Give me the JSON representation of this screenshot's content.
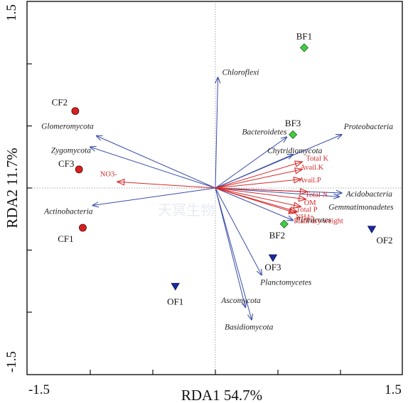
{
  "chart_data": {
    "type": "scatter",
    "subtype": "rda-biplot",
    "xlabel": "RDA1 54.7%",
    "ylabel": "RDA2 11.7%",
    "xlim": [
      -1.5,
      1.5
    ],
    "ylim": [
      -1.5,
      1.5
    ],
    "x_tick_labels": [
      "-1.5",
      "1.5"
    ],
    "y_tick_labels": [
      "1.5",
      "-1.5"
    ],
    "reference_lines": {
      "x": 0,
      "y": 0,
      "style": "dotted"
    },
    "colors": {
      "species_arrows": "#3a4fa8",
      "env_arrows": "#d62a2a",
      "CF": "#d92020",
      "BF": "#3fcf3f",
      "OF": "#1b2aa0"
    },
    "species_arrows": [
      {
        "label": "Chloroflexi",
        "x": 0.02,
        "y": 0.89
      },
      {
        "label": "Glomeromycota",
        "x": -0.95,
        "y": 0.42
      },
      {
        "label": "Zygomycota",
        "x": -1.0,
        "y": 0.33
      },
      {
        "label": "Actinobacteria",
        "x": -0.98,
        "y": -0.14
      },
      {
        "label": "Bacteroidetes",
        "x": 0.57,
        "y": 0.41
      },
      {
        "label": "Chytridiomycota",
        "x": 0.62,
        "y": 0.27
      },
      {
        "label": "Proteobacteria",
        "x": 1.01,
        "y": 0.43
      },
      {
        "label": "Acidobacteria",
        "x": 1.01,
        "y": -0.04
      },
      {
        "label": "Gemmatimonadetes",
        "x": 0.99,
        "y": -0.07
      },
      {
        "label": "Firmicutes",
        "x": 0.62,
        "y": -0.26
      },
      {
        "label": "Planctomycetes",
        "x": 0.37,
        "y": -0.7
      },
      {
        "label": "Ascomycota",
        "x": 0.24,
        "y": -0.96
      },
      {
        "label": "Basidiomycota",
        "x": 0.29,
        "y": -1.06
      }
    ],
    "env_arrows": [
      {
        "label": "NO3-",
        "x": -0.78,
        "y": 0.05
      },
      {
        "label": "Total K",
        "x": 0.69,
        "y": 0.21
      },
      {
        "label": "Avail.K",
        "x": 0.69,
        "y": 0.15
      },
      {
        "label": "Avail.P",
        "x": 0.68,
        "y": 0.07
      },
      {
        "label": "Total N",
        "x": 0.73,
        "y": -0.03
      },
      {
        "label": "OM",
        "x": 0.72,
        "y": -0.09
      },
      {
        "label": "Total P",
        "x": 0.68,
        "y": -0.15
      },
      {
        "label": "NH4+",
        "x": 0.64,
        "y": -0.2
      },
      {
        "label": "Plant dry weight",
        "x": 0.65,
        "y": -0.19
      }
    ],
    "samples": [
      {
        "label": "CF1",
        "group": "CF",
        "x": -1.06,
        "y": -0.32
      },
      {
        "label": "CF2",
        "group": "CF",
        "x": -1.12,
        "y": 0.62
      },
      {
        "label": "CF3",
        "group": "CF",
        "x": -1.09,
        "y": 0.15
      },
      {
        "label": "BF1",
        "group": "BF",
        "x": 0.71,
        "y": 1.13
      },
      {
        "label": "BF2",
        "group": "BF",
        "x": 0.55,
        "y": -0.29
      },
      {
        "label": "BF3",
        "group": "BF",
        "x": 0.62,
        "y": 0.43
      },
      {
        "label": "OF1",
        "group": "OF",
        "x": -0.32,
        "y": -0.79
      },
      {
        "label": "OF2",
        "group": "OF",
        "x": 1.25,
        "y": -0.33
      },
      {
        "label": "OF3",
        "group": "OF",
        "x": 0.46,
        "y": -0.56
      }
    ],
    "watermark": "天冥生物"
  }
}
